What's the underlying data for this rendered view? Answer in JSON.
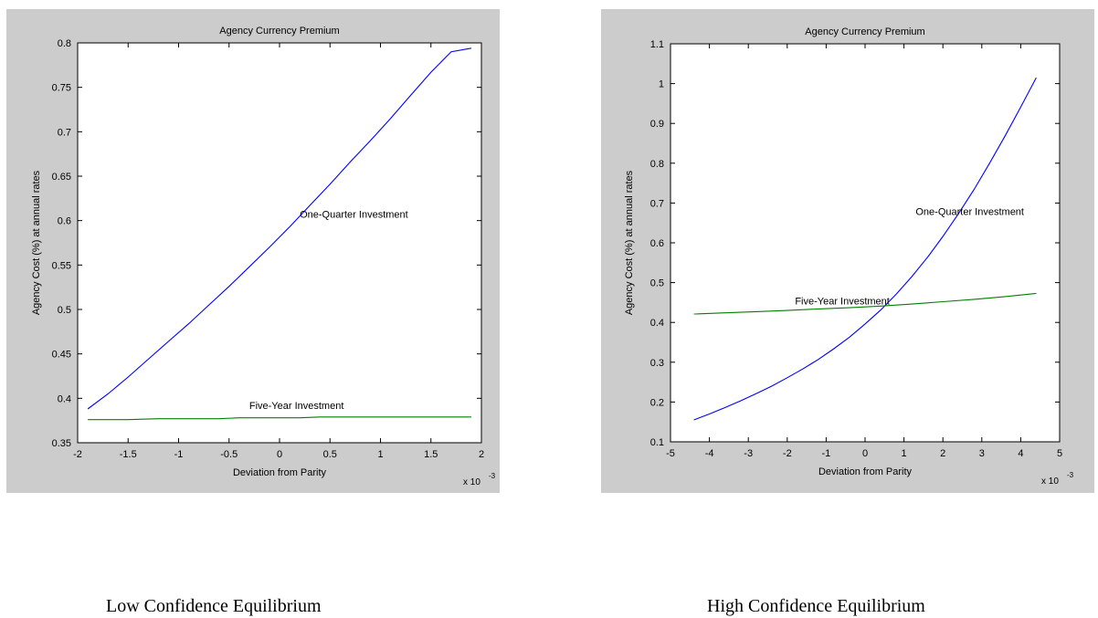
{
  "captions": {
    "left": "Low Confidence Equilibrium",
    "right": "High Confidence Equilibrium"
  },
  "colors": {
    "panel_bg": "#cccccc",
    "plot_bg": "#ffffff",
    "one_quarter": "#0000ff",
    "five_year": "#008000"
  },
  "chart_data": [
    {
      "type": "line",
      "title": "Agency Currency Premium",
      "xlabel": "Deviation from Parity",
      "ylabel": "Agency Cost (%) at annual rates",
      "x_multiplier": "x 10",
      "x_exponent": "-3",
      "xlim": [
        -2,
        2
      ],
      "ylim": [
        0.35,
        0.8
      ],
      "xticks": [
        -2,
        -1.5,
        -1,
        -0.5,
        0,
        0.5,
        1,
        1.5,
        2
      ],
      "yticks": [
        0.35,
        0.4,
        0.45,
        0.5,
        0.55,
        0.6,
        0.65,
        0.7,
        0.75,
        0.8
      ],
      "grid": false,
      "series": [
        {
          "name": "One-Quarter Investment",
          "color": "#0000ff",
          "x": [
            -1.9,
            -1.7,
            -1.5,
            -1.3,
            -1.1,
            -0.9,
            -0.7,
            -0.5,
            -0.3,
            -0.1,
            0.1,
            0.3,
            0.5,
            0.7,
            0.9,
            1.1,
            1.3,
            1.5,
            1.7,
            1.9
          ],
          "y": [
            0.388,
            0.405,
            0.424,
            0.444,
            0.464,
            0.484,
            0.505,
            0.526,
            0.548,
            0.57,
            0.593,
            0.617,
            0.641,
            0.666,
            0.69,
            0.715,
            0.741,
            0.767,
            0.79,
            0.794
          ]
        },
        {
          "name": "Five-Year Investment",
          "color": "#008000",
          "x": [
            -1.9,
            -1.5,
            -1.2,
            -0.6,
            -0.4,
            0.2,
            0.4,
            1.9
          ],
          "y": [
            0.376,
            0.376,
            0.377,
            0.377,
            0.378,
            0.378,
            0.379,
            0.379
          ]
        }
      ],
      "annotations": [
        {
          "text": "One-Quarter Investment",
          "x": 0.2,
          "y": 0.603
        },
        {
          "text": "Five-Year Investment",
          "x": -0.3,
          "y": 0.388
        }
      ]
    },
    {
      "type": "line",
      "title": "Agency Currency Premium",
      "xlabel": "Deviation from Parity",
      "ylabel": "Agency Cost (%) at annual rates",
      "x_multiplier": "x 10",
      "x_exponent": "-3",
      "xlim": [
        -5,
        5
      ],
      "ylim": [
        0.1,
        1.1
      ],
      "xticks": [
        -5,
        -4,
        -3,
        -2,
        -1,
        0,
        1,
        2,
        3,
        4,
        5
      ],
      "yticks": [
        0.1,
        0.2,
        0.3,
        0.4,
        0.5,
        0.6,
        0.7,
        0.8,
        0.9,
        1,
        1.1
      ],
      "grid": false,
      "series": [
        {
          "name": "One-Quarter Investment",
          "color": "#0000ff",
          "x": [
            -4.4,
            -4.0,
            -3.6,
            -3.2,
            -2.8,
            -2.4,
            -2.0,
            -1.6,
            -1.2,
            -0.8,
            -0.4,
            0.0,
            0.4,
            0.8,
            1.2,
            1.6,
            2.0,
            2.4,
            2.8,
            3.2,
            3.6,
            4.0,
            4.4
          ],
          "y": [
            0.155,
            0.17,
            0.186,
            0.203,
            0.221,
            0.24,
            0.261,
            0.283,
            0.307,
            0.334,
            0.363,
            0.396,
            0.431,
            0.471,
            0.515,
            0.563,
            0.616,
            0.673,
            0.734,
            0.8,
            0.869,
            0.941,
            1.015
          ]
        },
        {
          "name": "Five-Year Investment",
          "color": "#008000",
          "x": [
            -4.4,
            -3.6,
            -2.8,
            -2.0,
            -1.2,
            -0.4,
            0.4,
            1.2,
            2.0,
            2.8,
            3.6,
            4.4
          ],
          "y": [
            0.421,
            0.424,
            0.427,
            0.43,
            0.434,
            0.437,
            0.441,
            0.446,
            0.452,
            0.458,
            0.465,
            0.473
          ]
        }
      ],
      "annotations": [
        {
          "text": "One-Quarter Investment",
          "x": 1.3,
          "y": 0.67
        },
        {
          "text": "Five-Year Investment",
          "x": -1.8,
          "y": 0.445
        }
      ]
    }
  ]
}
